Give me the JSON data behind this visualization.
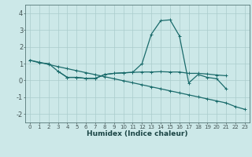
{
  "title": "",
  "xlabel": "Humidex (Indice chaleur)",
  "background_color": "#cce8e8",
  "grid_color": "#aacccc",
  "line_color": "#1a6b6b",
  "xlim": [
    -0.5,
    23.5
  ],
  "ylim": [
    -2.5,
    4.5
  ],
  "x_all": [
    0,
    1,
    2,
    3,
    4,
    5,
    6,
    7,
    8,
    9,
    10,
    11,
    12,
    13,
    14,
    15,
    16,
    17,
    18,
    19,
    20,
    21,
    22,
    23
  ],
  "line1_y": [
    1.2,
    1.05,
    1.0,
    0.55,
    0.18,
    0.18,
    0.12,
    0.12,
    0.35,
    0.42,
    0.45,
    0.48,
    1.0,
    2.75,
    3.55,
    3.6,
    2.65,
    -0.15,
    0.35,
    0.18,
    0.1,
    -0.5,
    null,
    null
  ],
  "line2_y": [
    null,
    null,
    null,
    0.55,
    0.18,
    0.18,
    0.12,
    0.12,
    0.35,
    0.42,
    0.45,
    0.48,
    0.5,
    0.5,
    0.52,
    0.5,
    0.5,
    0.42,
    0.42,
    0.38,
    0.32,
    0.28,
    null,
    null
  ],
  "line3_y": [
    1.2,
    1.08,
    0.95,
    0.82,
    0.7,
    0.58,
    0.46,
    0.34,
    0.22,
    0.1,
    -0.02,
    -0.14,
    -0.26,
    -0.38,
    -0.5,
    -0.62,
    -0.74,
    -0.86,
    -0.98,
    -1.1,
    -1.22,
    -1.34,
    -1.56,
    -1.72
  ],
  "xtick_fontsize": 5.0,
  "ytick_fontsize": 6.0,
  "xlabel_fontsize": 6.5
}
